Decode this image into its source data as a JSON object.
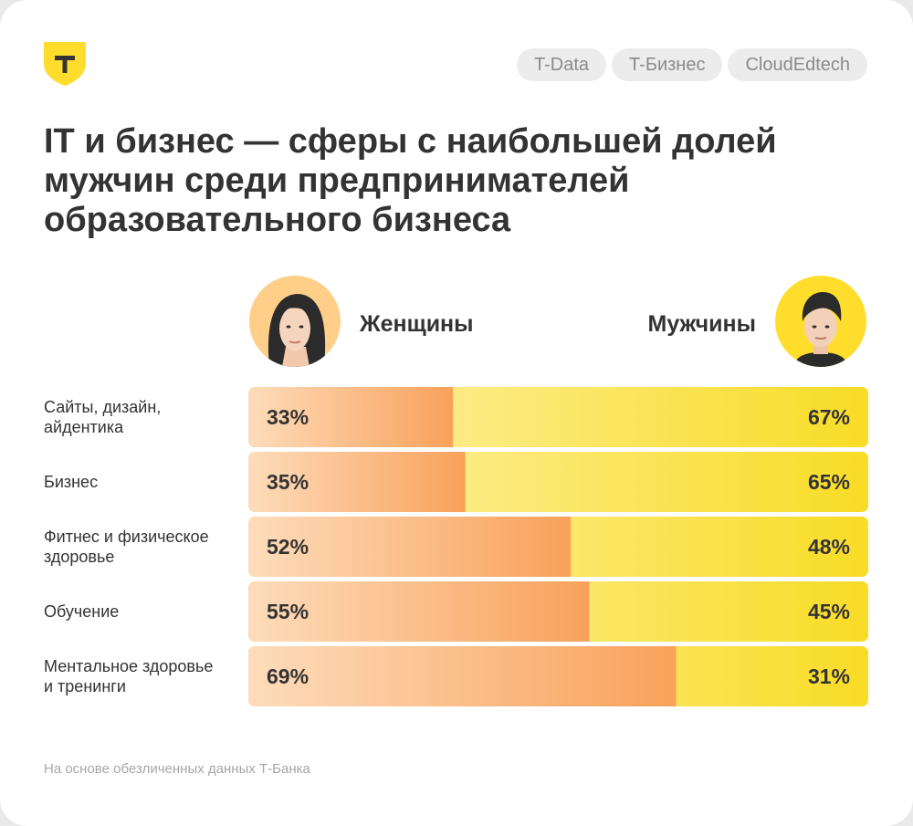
{
  "header": {
    "tags": [
      "T-Data",
      "T-Бизнес",
      "CloudEdtech"
    ]
  },
  "title": "IT и бизнес — сферы с наибольшей долей мужчин среди предпринимателей образовательного бизнеса",
  "legend": {
    "women_label": "Женщины",
    "men_label": "Мужчины"
  },
  "footnote": "На основе обезличенных данных Т-Банка",
  "colors": {
    "women_start": "#fddcbb",
    "women_end": "#f9a15a",
    "men_start": "#fff3b3",
    "men_end": "#f8dc26",
    "brand_yellow": "#ffdd2d"
  },
  "chart_data": {
    "type": "bar",
    "orientation": "horizontal",
    "stacked": true,
    "units": "%",
    "xlim": [
      0,
      100
    ],
    "categories": [
      [
        "Сайты, дизайн,",
        "айдентика"
      ],
      [
        "Бизнес"
      ],
      [
        "Фитнес и физическое",
        "здоровье"
      ],
      [
        "Обучение"
      ],
      [
        "Ментальное здоровье",
        "и тренинги"
      ]
    ],
    "series": [
      {
        "name": "Женщины",
        "values": [
          33,
          35,
          52,
          55,
          69
        ],
        "labels": [
          "33%",
          "35%",
          "52%",
          "55%",
          "69%"
        ]
      },
      {
        "name": "Мужчины",
        "values": [
          67,
          65,
          48,
          45,
          31
        ],
        "labels": [
          "67%",
          "65%",
          "48%",
          "45%",
          "31%"
        ]
      }
    ]
  }
}
